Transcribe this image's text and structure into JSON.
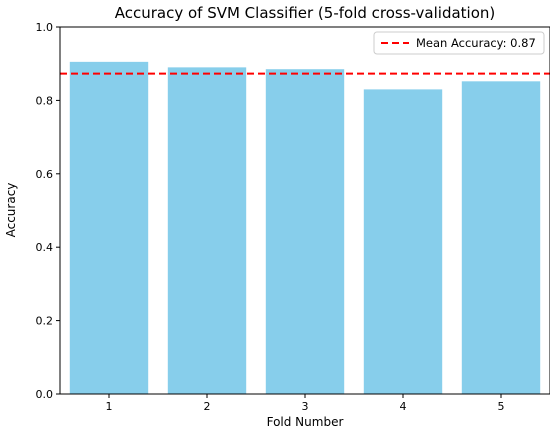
{
  "chart_data": {
    "type": "bar",
    "title": "Accuracy of SVM Classifier (5-fold cross-validation)",
    "xlabel": "Fold Number",
    "ylabel": "Accuracy",
    "categories": [
      "1",
      "2",
      "3",
      "4",
      "5"
    ],
    "values": [
      0.905,
      0.89,
      0.885,
      0.83,
      0.852
    ],
    "ylim": [
      0,
      1.0
    ],
    "yticks": [
      "0.0",
      "0.2",
      "0.4",
      "0.6",
      "0.8",
      "1.0"
    ],
    "grid": false,
    "bar_color": "#87CEEB",
    "reference_line": {
      "label": "Mean Accuracy: 0.87",
      "value": 0.873,
      "color": "#ff0000",
      "style": "dashed"
    },
    "legend_position": "top-right"
  }
}
